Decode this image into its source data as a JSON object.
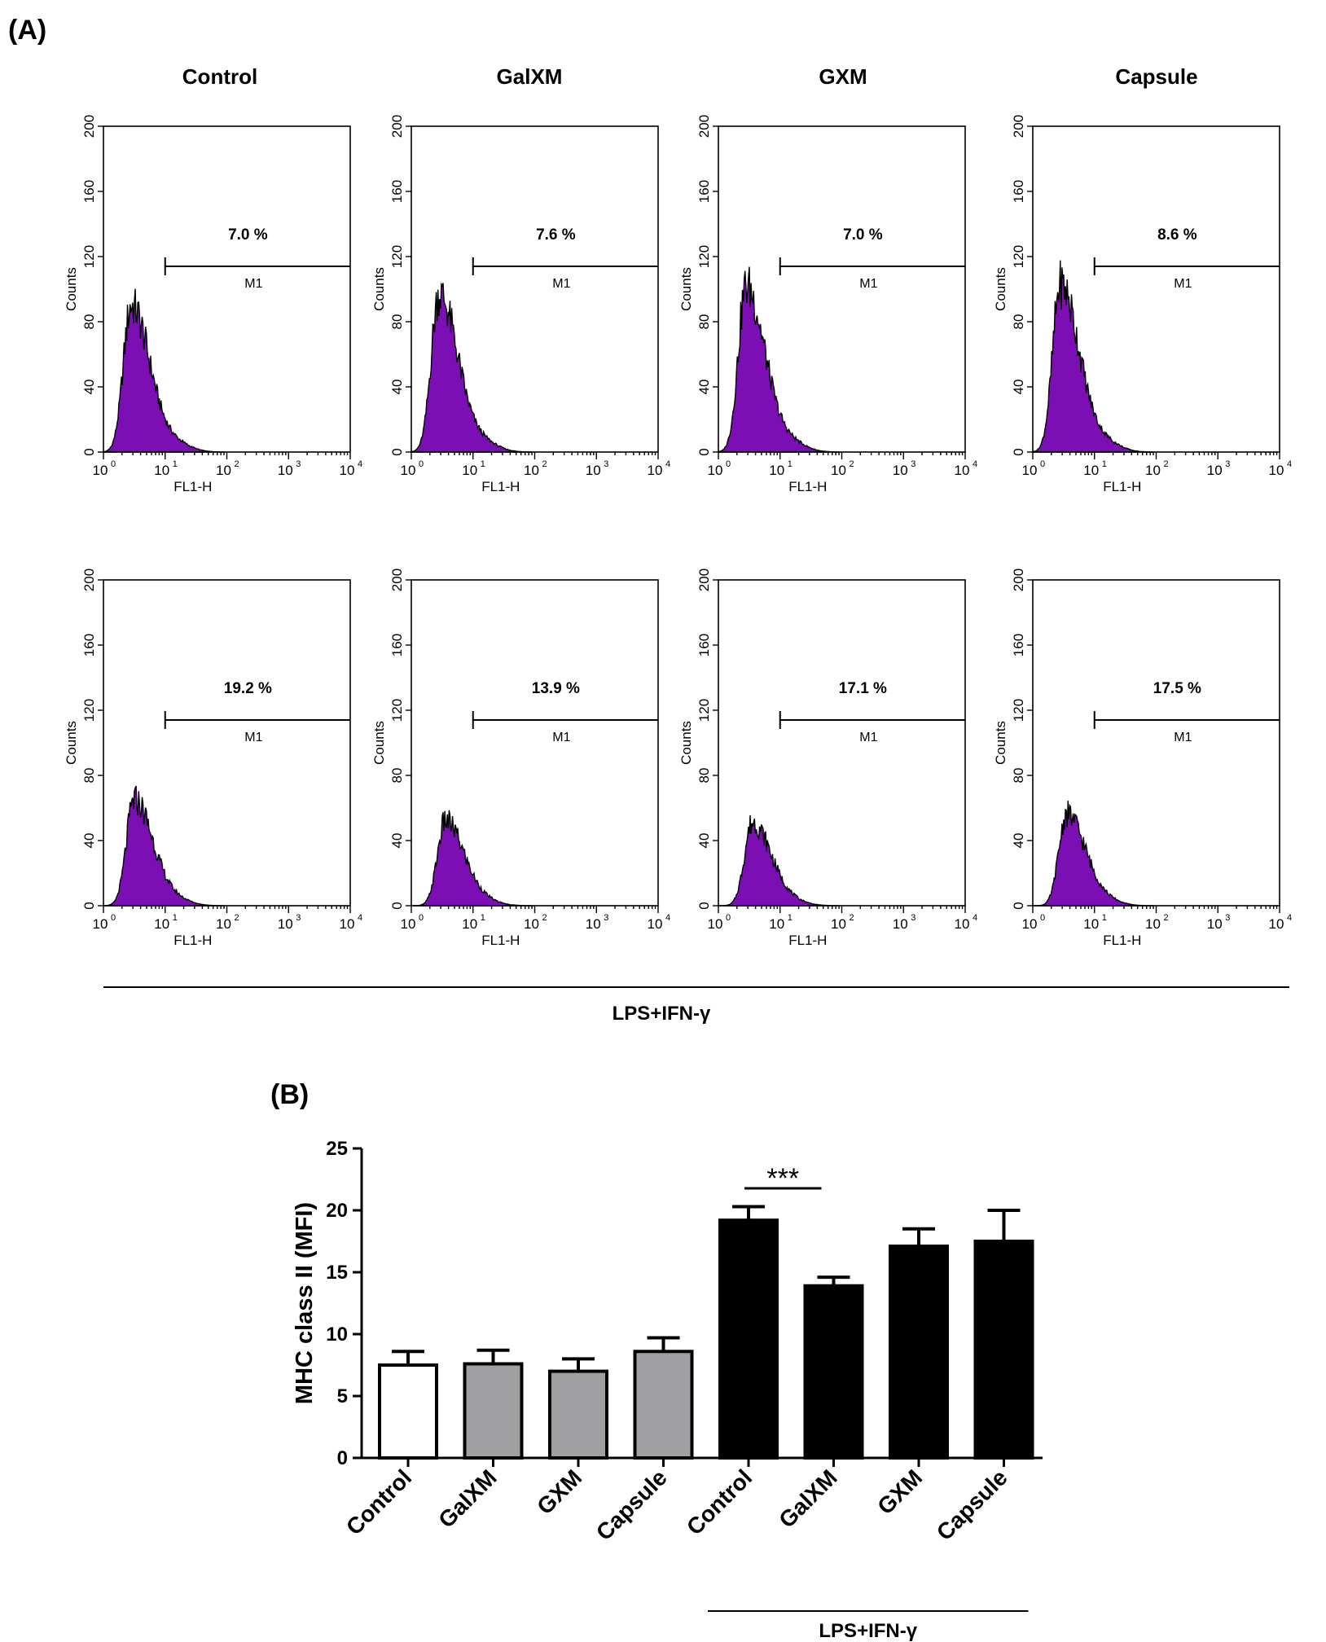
{
  "panel_a": {
    "label": "(A)",
    "columns": [
      "Control",
      "GalXM",
      "GXM",
      "Capsule"
    ],
    "group_label": "LPS+IFN-γ",
    "axis": {
      "ylabel": "Counts",
      "xlabel": "FL1-H",
      "ylim": [
        0,
        200
      ],
      "yticks": [
        "0",
        "40",
        "80",
        "120",
        "160",
        "200"
      ],
      "xticks": [
        {
          "base": "10",
          "exp": "0"
        },
        {
          "base": "10",
          "exp": "1"
        },
        {
          "base": "10",
          "exp": "2"
        },
        {
          "base": "10",
          "exp": "3"
        },
        {
          "base": "10",
          "exp": "4"
        }
      ],
      "xscale": "log",
      "xlim_decades": [
        0,
        4
      ]
    },
    "gate_label": "M1",
    "fill_color": "#7b0fb3"
  },
  "chart_data": [
    {
      "type": "area",
      "row": 0,
      "col": 0,
      "condition": "Control",
      "percent": "7.0 %",
      "peak_count": 90,
      "peak_log_fl": 0.45,
      "gate_start_fl": 10
    },
    {
      "type": "area",
      "row": 0,
      "col": 1,
      "condition": "GalXM",
      "percent": "7.6 %",
      "peak_count": 97,
      "peak_log_fl": 0.45,
      "gate_start_fl": 10
    },
    {
      "type": "area",
      "row": 0,
      "col": 2,
      "condition": "GXM",
      "percent": "7.0 %",
      "peak_count": 102,
      "peak_log_fl": 0.45,
      "gate_start_fl": 10
    },
    {
      "type": "area",
      "row": 0,
      "col": 3,
      "condition": "Capsule",
      "percent": "8.6 %",
      "peak_count": 103,
      "peak_log_fl": 0.45,
      "gate_start_fl": 10
    },
    {
      "type": "area",
      "row": 1,
      "col": 0,
      "condition": "Control",
      "percent": "19.2 %",
      "peak_count": 65,
      "peak_log_fl": 0.5,
      "gate_start_fl": 10
    },
    {
      "type": "area",
      "row": 1,
      "col": 1,
      "condition": "GalXM",
      "percent": "13.9 %",
      "peak_count": 52,
      "peak_log_fl": 0.55,
      "gate_start_fl": 10
    },
    {
      "type": "area",
      "row": 1,
      "col": 2,
      "condition": "GXM",
      "percent": "17.1 %",
      "peak_count": 51,
      "peak_log_fl": 0.55,
      "gate_start_fl": 10
    },
    {
      "type": "area",
      "row": 1,
      "col": 3,
      "condition": "Capsule",
      "percent": "17.5 %",
      "peak_count": 56,
      "peak_log_fl": 0.55,
      "gate_start_fl": 10
    },
    {
      "type": "bar",
      "panel_label": "(B)",
      "ylabel": "MHC class II (MFI)",
      "ylim": [
        0,
        25
      ],
      "yticks": [
        "0",
        "5",
        "10",
        "15",
        "20",
        "25"
      ],
      "categories": [
        "Control",
        "GalXM",
        "GXM",
        "Capsule",
        "Control",
        "GalXM",
        "GXM",
        "Capsule"
      ],
      "values": [
        7.5,
        7.6,
        7.0,
        8.6,
        19.2,
        13.9,
        17.1,
        17.5
      ],
      "errors": [
        1.1,
        1.1,
        1.0,
        1.1,
        1.1,
        0.7,
        1.4,
        2.5
      ],
      "fills": [
        "#ffffff",
        "#a0a0a2",
        "#a0a0a2",
        "#a0a0a2",
        "#000000",
        "#000000",
        "#000000",
        "#000000"
      ],
      "group_label": "LPS+IFN-γ",
      "significance": {
        "label": "***",
        "between": [
          4,
          5
        ]
      }
    }
  ]
}
